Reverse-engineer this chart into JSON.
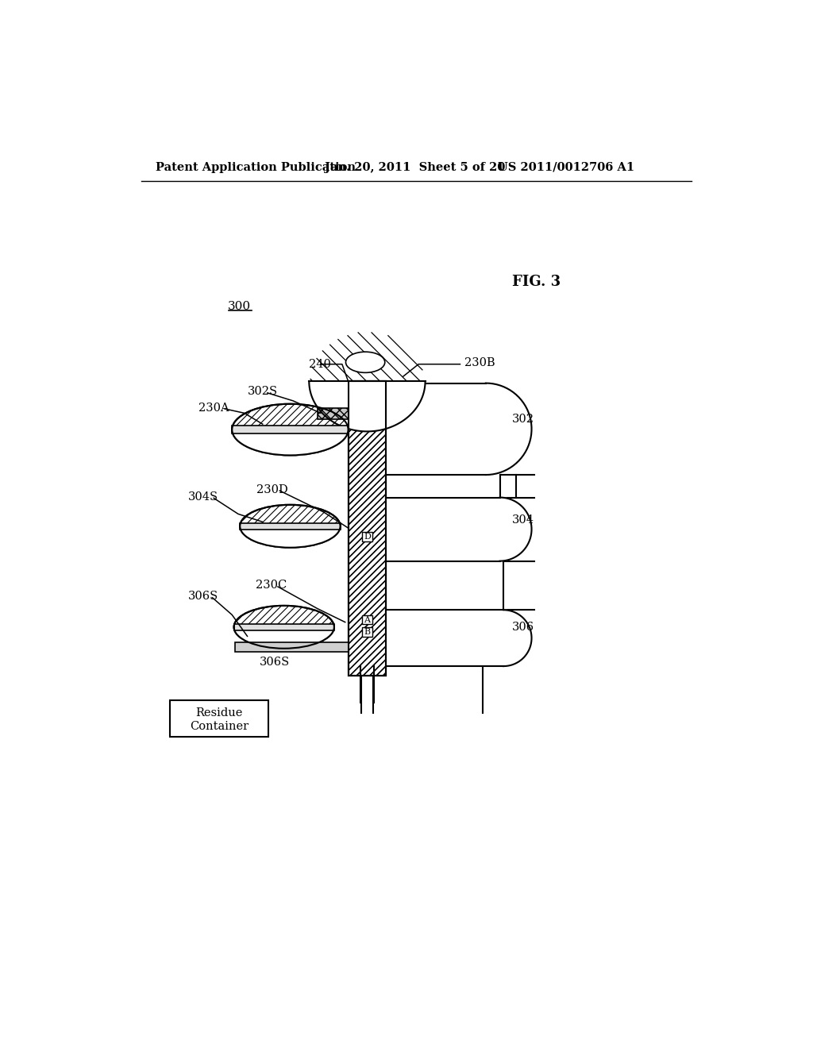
{
  "title_left": "Patent Application Publication",
  "title_center": "Jan. 20, 2011  Sheet 5 of 20",
  "title_right": "US 2011/0012706 A1",
  "fig_label": "FIG. 3",
  "ref_300": "300",
  "bg_color": "#ffffff",
  "line_color": "#000000"
}
